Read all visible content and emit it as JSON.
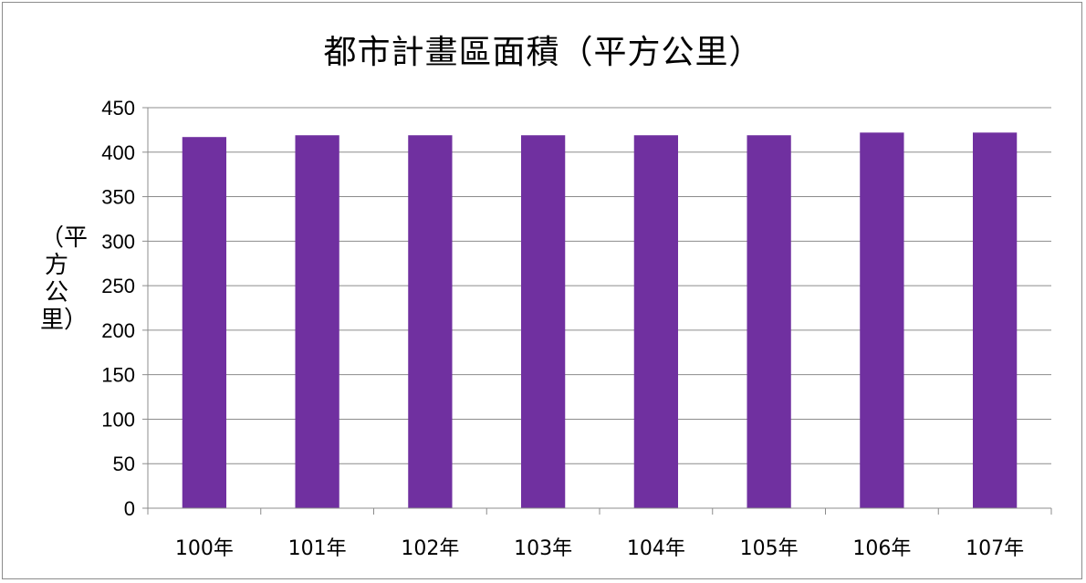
{
  "chart_data": {
    "type": "bar",
    "title": "都市計畫區面積（平方公里）",
    "xlabel": "",
    "ylabel": "（平方公里）",
    "categories": [
      "100年",
      "101年",
      "102年",
      "103年",
      "104年",
      "105年",
      "106年",
      "107年"
    ],
    "values": [
      417,
      419,
      419,
      419,
      419,
      419,
      422,
      422
    ],
    "ylim": [
      0,
      450
    ],
    "yticks": [
      0,
      50,
      100,
      150,
      200,
      250,
      300,
      350,
      400,
      450
    ],
    "grid": true,
    "legend": "none",
    "bar_color": "#7030a0"
  }
}
